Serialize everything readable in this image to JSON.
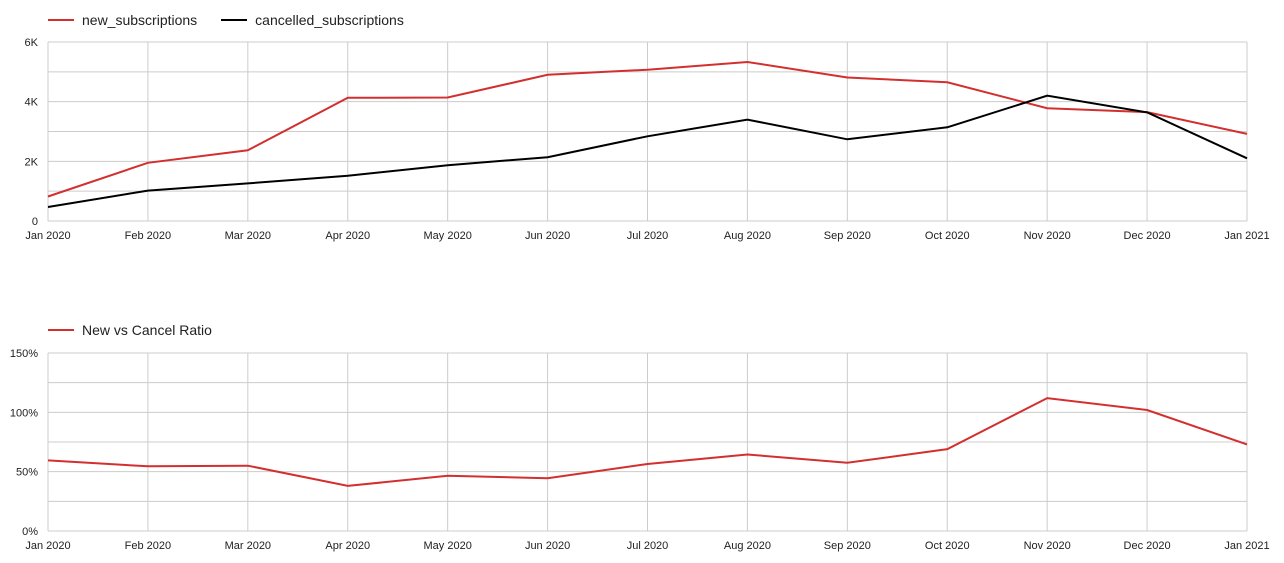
{
  "chart_data": [
    {
      "type": "line",
      "categories": [
        "Jan 2020",
        "Feb 2020",
        "Mar 2020",
        "Apr 2020",
        "May 2020",
        "Jun 2020",
        "Jul 2020",
        "Aug 2020",
        "Sep 2020",
        "Oct 2020",
        "Nov 2020",
        "Dec 2020",
        "Jan 2021"
      ],
      "series": [
        {
          "name": "new_subscriptions",
          "color": "#d32f2f",
          "values": [
            820,
            1950,
            2370,
            4130,
            4140,
            4900,
            5070,
            5330,
            4810,
            4650,
            3780,
            3650,
            2920
          ]
        },
        {
          "name": "cancelled_subscriptions",
          "color": "#000000",
          "values": [
            470,
            1020,
            1260,
            1520,
            1870,
            2140,
            2840,
            3400,
            2740,
            3140,
            4200,
            3640,
            2100
          ]
        }
      ],
      "y_ticks": [
        "0",
        "2K",
        "4K",
        "6K"
      ],
      "ylim": [
        0,
        6000
      ],
      "grid": true,
      "legend_position": "top-left"
    },
    {
      "type": "line",
      "categories": [
        "Jan 2020",
        "Feb 2020",
        "Mar 2020",
        "Apr 2020",
        "May 2020",
        "Jun 2020",
        "Jul 2020",
        "Aug 2020",
        "Sep 2020",
        "Oct 2020",
        "Nov 2020",
        "Dec 2020",
        "Jan 2021"
      ],
      "series": [
        {
          "name": "New vs Cancel Ratio",
          "color": "#d32f2f",
          "values": [
            59.5,
            54.5,
            55,
            38,
            46.5,
            44.5,
            56.5,
            64.5,
            57.5,
            69,
            112,
            102,
            73
          ]
        }
      ],
      "y_ticks": [
        "0%",
        "50%",
        "100%",
        "150%"
      ],
      "ylim": [
        0,
        150
      ],
      "grid": true,
      "legend_position": "top-left"
    }
  ]
}
